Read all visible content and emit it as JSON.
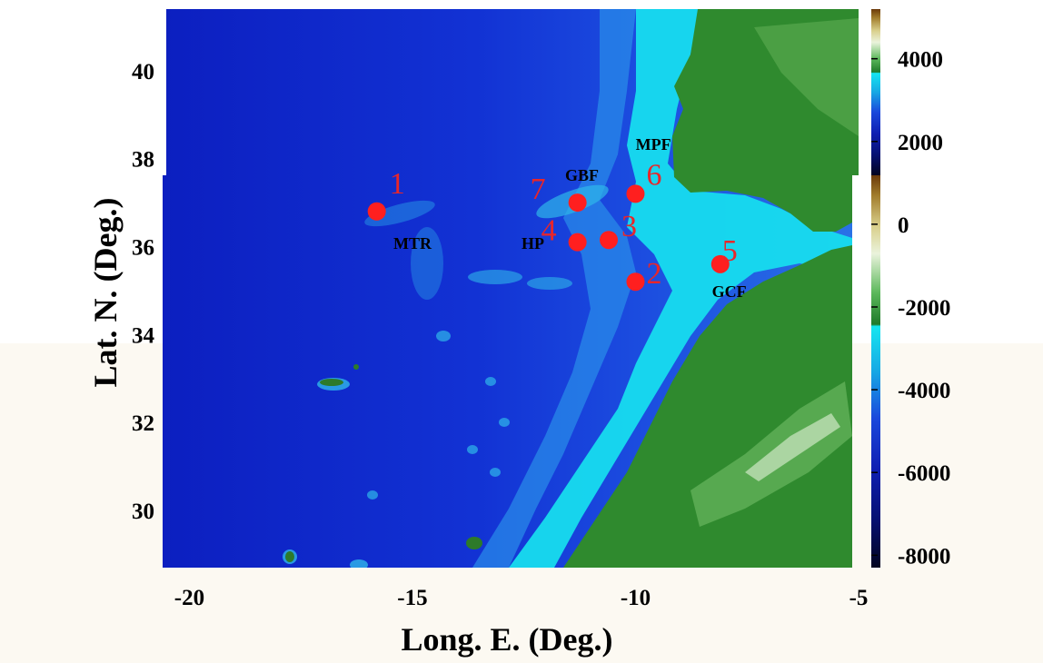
{
  "chart_data": {
    "type": "scatter",
    "title": "",
    "xlabel": "Long. E. (Deg.)",
    "ylabel": "Lat. N. (Deg.)",
    "xlim": [
      -20.6,
      -5.0
    ],
    "ylim": [
      28.7,
      41.4
    ],
    "x_ticks": [
      -20,
      -15,
      -10,
      -5
    ],
    "y_ticks": [
      30,
      32,
      34,
      36,
      38,
      40
    ],
    "stations": [
      {
        "label": "1",
        "lon": -15.8,
        "lat": 36.8
      },
      {
        "label": "2",
        "lon": -10.0,
        "lat": 35.2
      },
      {
        "label": "3",
        "lon": -10.6,
        "lat": 36.15
      },
      {
        "label": "4",
        "lon": -11.3,
        "lat": 36.1
      },
      {
        "label": "5",
        "lon": -8.1,
        "lat": 35.6
      },
      {
        "label": "6",
        "lon": -10.0,
        "lat": 37.2
      },
      {
        "label": "7",
        "lon": -11.3,
        "lat": 37.0
      }
    ],
    "feature_labels": [
      {
        "text": "MTR",
        "lon": -15.0,
        "lat": 35.95
      },
      {
        "text": "HP",
        "lon": -12.3,
        "lat": 35.95
      },
      {
        "text": "GBF",
        "lon": -11.2,
        "lat": 37.5
      },
      {
        "text": "MPF",
        "lon": -9.6,
        "lat": 38.2
      },
      {
        "text": "GCF",
        "lon": -7.9,
        "lat": 34.85
      }
    ],
    "colorbar": {
      "ticks": [
        4000,
        2000,
        0,
        -2000,
        -4000,
        -6000,
        -8000
      ],
      "range": [
        -8300,
        5200
      ]
    },
    "colors": {
      "marker": "#ff1f1f",
      "station_label": "#e8262a",
      "deep_ocean": "#0a22c4",
      "shelf": "#16e6f0",
      "land": "#2f8a2e"
    }
  }
}
